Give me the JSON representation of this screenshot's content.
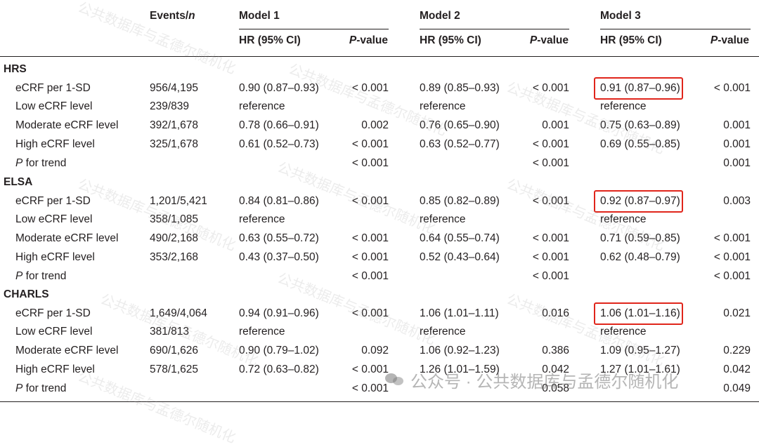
{
  "header": {
    "events": "Events/n",
    "events_prefix": "Events/",
    "events_n": "n",
    "models": [
      "Model 1",
      "Model 2",
      "Model 3"
    ],
    "hr_label": "HR (95% CI)",
    "p_label_italic": "P",
    "p_label_rest": "-value"
  },
  "sections": [
    {
      "name": "HRS",
      "rows": [
        {
          "label": "eCRF per 1-SD",
          "events": "956/4,195",
          "m1_hr": "0.90 (0.87–0.93)",
          "m1_p": "< 0.001",
          "m2_hr": "0.89 (0.85–0.93)",
          "m2_p": "< 0.001",
          "m3_hr": "0.91 (0.87–0.96)",
          "m3_p": "< 0.001"
        },
        {
          "label": "Low eCRF level",
          "events": "239/839",
          "m1_hr": "reference",
          "m1_p": "",
          "m2_hr": "reference",
          "m2_p": "",
          "m3_hr": "reference",
          "m3_p": ""
        },
        {
          "label": "Moderate eCRF level",
          "events": "392/1,678",
          "m1_hr": "0.78 (0.66–0.91)",
          "m1_p": "0.002",
          "m2_hr": "0.76 (0.65–0.90)",
          "m2_p": "0.001",
          "m3_hr": "0.75 (0.63–0.89)",
          "m3_p": "0.001"
        },
        {
          "label": "High eCRF level",
          "events": "325/1,678",
          "m1_hr": "0.61 (0.52–0.73)",
          "m1_p": "< 0.001",
          "m2_hr": "0.63 (0.52–0.77)",
          "m2_p": "< 0.001",
          "m3_hr": "0.69 (0.55–0.85)",
          "m3_p": "0.001"
        },
        {
          "label_italic": "P",
          "label": " for trend",
          "events": "",
          "m1_hr": "",
          "m1_p": "< 0.001",
          "m2_hr": "",
          "m2_p": "< 0.001",
          "m3_hr": "",
          "m3_p": "0.001"
        }
      ]
    },
    {
      "name": "ELSA",
      "rows": [
        {
          "label": "eCRF per 1-SD",
          "events": "1,201/5,421",
          "m1_hr": "0.84 (0.81–0.86)",
          "m1_p": "< 0.001",
          "m2_hr": "0.85 (0.82–0.89)",
          "m2_p": "< 0.001",
          "m3_hr": "0.92 (0.87–0.97)",
          "m3_p": "0.003"
        },
        {
          "label": "Low eCRF level",
          "events": "358/1,085",
          "m1_hr": "reference",
          "m1_p": "",
          "m2_hr": "reference",
          "m2_p": "",
          "m3_hr": "reference",
          "m3_p": ""
        },
        {
          "label": "Moderate eCRF level",
          "events": "490/2,168",
          "m1_hr": "0.63 (0.55–0.72)",
          "m1_p": "< 0.001",
          "m2_hr": "0.64 (0.55–0.74)",
          "m2_p": "< 0.001",
          "m3_hr": "0.71 (0.59–0.85)",
          "m3_p": "< 0.001"
        },
        {
          "label": "High eCRF level",
          "events": "353/2,168",
          "m1_hr": "0.43 (0.37–0.50)",
          "m1_p": "< 0.001",
          "m2_hr": "0.52 (0.43–0.64)",
          "m2_p": "< 0.001",
          "m3_hr": "0.62 (0.48–0.79)",
          "m3_p": "< 0.001"
        },
        {
          "label_italic": "P",
          "label": " for trend",
          "events": "",
          "m1_hr": "",
          "m1_p": "< 0.001",
          "m2_hr": "",
          "m2_p": "< 0.001",
          "m3_hr": "",
          "m3_p": "< 0.001"
        }
      ]
    },
    {
      "name": "CHARLS",
      "rows": [
        {
          "label": "eCRF per 1-SD",
          "events": "1,649/4,064",
          "m1_hr": "0.94 (0.91–0.96)",
          "m1_p": "< 0.001",
          "m2_hr": "1.06 (1.01–1.11)",
          "m2_p": "0.016",
          "m3_hr": "1.06 (1.01–1.16)",
          "m3_p": "0.021"
        },
        {
          "label": "Low eCRF level",
          "events": "381/813",
          "m1_hr": "reference",
          "m1_p": "",
          "m2_hr": "reference",
          "m2_p": "",
          "m3_hr": "reference",
          "m3_p": ""
        },
        {
          "label": "Moderate eCRF level",
          "events": "690/1,626",
          "m1_hr": "0.90 (0.79–1.02)",
          "m1_p": "0.092",
          "m2_hr": "1.06 (0.92–1.23)",
          "m2_p": "0.386",
          "m3_hr": "1.09 (0.95–1.27)",
          "m3_p": "0.229"
        },
        {
          "label": "High eCRF level",
          "events": "578/1,625",
          "m1_hr": "0.72 (0.63–0.82)",
          "m1_p": "< 0.001",
          "m2_hr": "1.26 (1.01–1.59)",
          "m2_p": "0.042",
          "m3_hr": "1.27 (1.01–1.61)",
          "m3_p": "0.042"
        },
        {
          "label_italic": "P",
          "label": " for trend",
          "events": "",
          "m1_hr": "",
          "m1_p": "< 0.001",
          "m2_hr": "",
          "m2_p": "0.058",
          "m3_hr": "",
          "m3_p": "0.049"
        }
      ]
    }
  ],
  "watermark": {
    "text": "公共数据库与孟德尔随机化",
    "footer_text": "公众号 · 公共数据库与孟德尔随机化"
  },
  "highlight_color": "#e0251b"
}
